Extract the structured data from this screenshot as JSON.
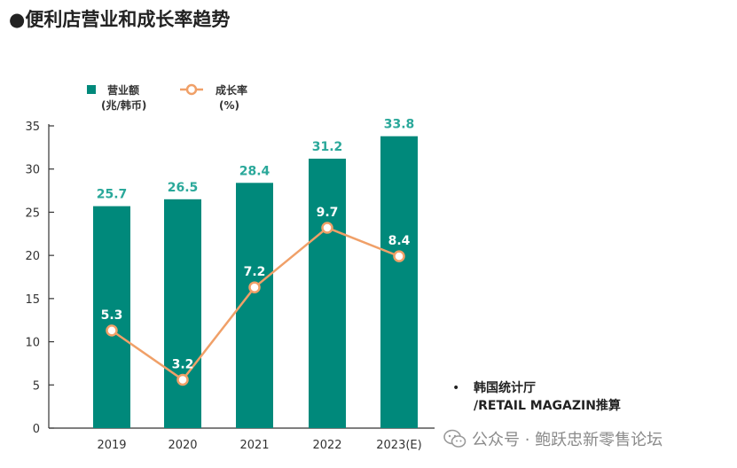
{
  "page": {
    "title": "●便利店营业和成长率趋势"
  },
  "chart_data": {
    "type": "bar+line",
    "categories": [
      "2019",
      "2020",
      "2021",
      "2022",
      "2023(E)"
    ],
    "series": [
      {
        "name": "营业额",
        "unit": "(兆/韩币)",
        "type": "bar",
        "values": [
          25.7,
          26.5,
          28.4,
          31.2,
          33.8
        ]
      },
      {
        "name": "成长率",
        "unit": "(%)",
        "type": "line",
        "values": [
          5.3,
          3.2,
          7.2,
          9.7,
          8.4
        ]
      }
    ],
    "bar_labels": [
      "25.7",
      "26.5",
      "28.4",
      "31.2",
      "33.8"
    ],
    "line_labels": [
      "5.3",
      "3.2",
      "7.2",
      "9.7",
      "8.4"
    ],
    "y_ticks": [
      "0",
      "5",
      "10",
      "15",
      "20",
      "25",
      "30",
      "35"
    ],
    "ylim": [
      0,
      35
    ],
    "line_plot_values": [
      11.3,
      5.6,
      16.3,
      23.2,
      19.9
    ]
  },
  "legend": {
    "bar_label": "营业额",
    "bar_unit": "(兆/韩币)",
    "line_label": "成长率",
    "line_unit": "(%)"
  },
  "source": {
    "bullet": "•",
    "line1": "韩国统计厅",
    "line2": "/RETAIL MAGAZIN推算"
  },
  "watermark": {
    "text": "公众号 · 鲍跃忠新零售论坛",
    "icon": "wechat-icon"
  },
  "colors": {
    "bar": "#00897b",
    "bar_label": "#2aa89a",
    "line": "#f0a068",
    "axis": "#333333"
  }
}
